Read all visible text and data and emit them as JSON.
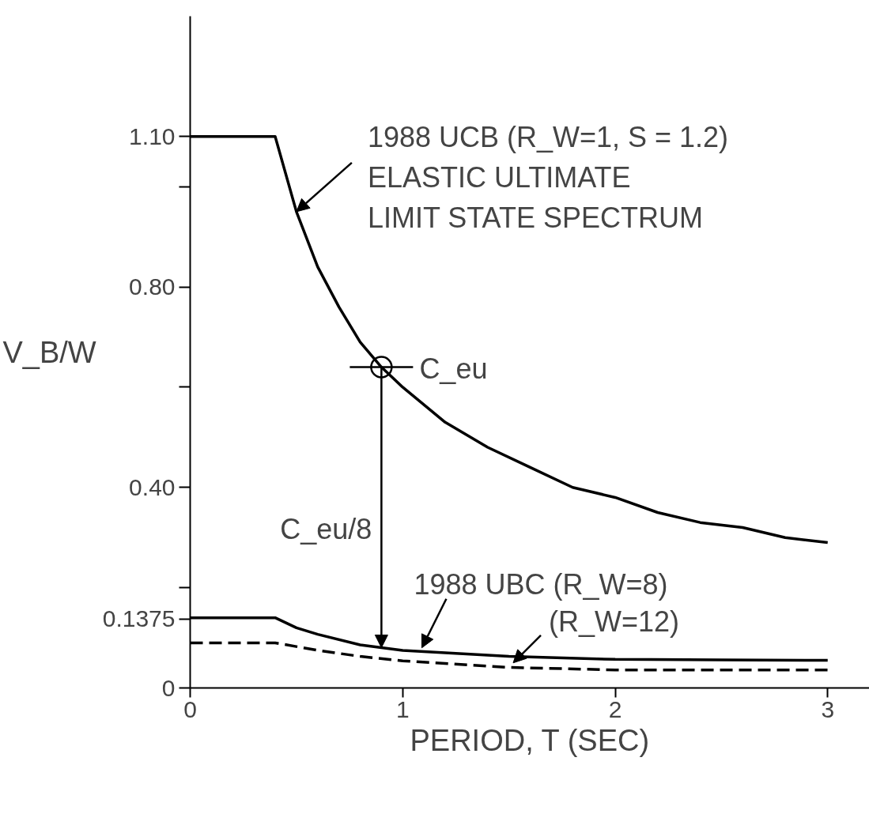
{
  "chart_data": {
    "type": "line",
    "xlabel": "PERIOD, T (SEC)",
    "ylabel": "V_B/W",
    "xlim": [
      0,
      3.2
    ],
    "ylim": [
      0,
      1.34
    ],
    "xticks": [
      0,
      1,
      2,
      3
    ],
    "yticks": [
      0,
      {
        "value": 0.1375,
        "label": "0.1375"
      },
      {
        "value": 0.2,
        "label": null
      },
      {
        "value": 0.4,
        "label": "0.40"
      },
      {
        "value": 0.6,
        "label": null
      },
      {
        "value": 0.8,
        "label": "0.80"
      },
      {
        "value": 1.0,
        "label": null
      },
      {
        "value": 1.1,
        "label": "1.10"
      }
    ],
    "series": [
      {
        "color": "#000000",
        "line_style": "solid",
        "x": [
          0,
          0.4,
          0.5,
          0.6,
          0.7,
          0.8,
          0.9,
          1.0,
          1.2,
          1.4,
          1.6,
          1.8,
          2.0,
          2.2,
          2.4,
          2.6,
          2.8,
          3.0
        ],
        "values": [
          1.1,
          1.1,
          0.95,
          0.84,
          0.76,
          0.69,
          0.64,
          0.6,
          0.53,
          0.48,
          0.44,
          0.4,
          0.38,
          0.35,
          0.33,
          0.32,
          0.3,
          0.29
        ]
      },
      {
        "color": "#000000",
        "line_style": "solid",
        "x": [
          0,
          0.4,
          0.5,
          0.6,
          0.8,
          1.0,
          1.5,
          2.0,
          2.5,
          3.0
        ],
        "values": [
          0.14,
          0.14,
          0.12,
          0.107,
          0.086,
          0.075,
          0.063,
          0.057,
          0.056,
          0.055
        ]
      },
      {
        "color": "#000000",
        "line_style": "dashed",
        "x": [
          0,
          0.4,
          0.6,
          0.8,
          1.0,
          1.5,
          2.0,
          2.5,
          3.0
        ],
        "values": [
          0.09,
          0.09,
          0.075,
          0.063,
          0.054,
          0.041,
          0.036,
          0.036,
          0.036
        ]
      }
    ],
    "annotations": [
      {
        "text": "1988 UCB (R_W=1, S = 1.2)\nELASTIC ULTIMATE\nLIMIT STATE SPECTRUM",
        "x": 0.5,
        "y": 0.95
      },
      {
        "text": "C_eu",
        "x": 0.9,
        "y": 0.64
      },
      "C_eu/8",
      {
        "text": "1988 UBC (R_W=8)",
        "x": 1.09,
        "y": 0.08
      },
      {
        "text": "(R_W=12)",
        "x": 1.52,
        "y": 0.05
      }
    ]
  }
}
